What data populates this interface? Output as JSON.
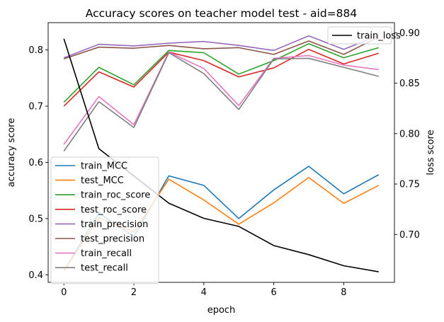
{
  "chart_data": {
    "type": "line",
    "title": "Accuracy scores on teacher model test - aid=884",
    "xlabel": "epoch",
    "ylabel_left": "accuracy score",
    "ylabel_right": "loss score",
    "x": [
      0,
      1,
      2,
      3,
      4,
      5,
      6,
      7,
      8,
      9
    ],
    "xlim": [
      -0.45,
      9.45
    ],
    "ylim_left": [
      0.3865,
      0.8485
    ],
    "ylim_right": [
      0.6525,
      0.91
    ],
    "xticks": [
      0,
      2,
      4,
      6,
      8
    ],
    "yticks_left": [
      0.4,
      0.5,
      0.6,
      0.7,
      0.8
    ],
    "ytick_labels_left": [
      "0.4",
      "0.5",
      "0.6",
      "0.7",
      "0.8"
    ],
    "yticks_right": [
      0.7,
      0.75,
      0.8,
      0.85,
      0.9
    ],
    "ytick_labels_right": [
      "0.70",
      "0.75",
      "0.80",
      "0.85",
      "0.90"
    ],
    "grid": false,
    "series_left": [
      {
        "name": "train_MCC",
        "color": "#1f77b4",
        "values": [
          0.407,
          0.51,
          0.468,
          0.576,
          0.559,
          0.5,
          0.551,
          0.593,
          0.544,
          0.578
        ]
      },
      {
        "name": "test_MCC",
        "color": "#ff7f0e",
        "values": [
          0.407,
          0.502,
          0.476,
          0.57,
          0.533,
          0.49,
          0.528,
          0.573,
          0.527,
          0.559
        ]
      },
      {
        "name": "train_roc_score",
        "color": "#2ca02c",
        "values": [
          0.707,
          0.769,
          0.738,
          0.799,
          0.795,
          0.757,
          0.781,
          0.811,
          0.786,
          0.804
        ]
      },
      {
        "name": "test_roc_score",
        "color": "#d62728",
        "values": [
          0.7,
          0.761,
          0.734,
          0.796,
          0.781,
          0.752,
          0.768,
          0.801,
          0.775,
          0.794
        ]
      },
      {
        "name": "train_precision",
        "color": "#9467bd",
        "values": [
          0.786,
          0.81,
          0.807,
          0.812,
          0.815,
          0.808,
          0.799,
          0.825,
          0.801,
          0.826
        ]
      },
      {
        "name": "test_precision",
        "color": "#8c564b",
        "values": [
          0.784,
          0.805,
          0.803,
          0.808,
          0.802,
          0.804,
          0.792,
          0.816,
          0.792,
          0.823
        ]
      },
      {
        "name": "train_recall",
        "color": "#e377c2",
        "values": [
          0.632,
          0.717,
          0.667,
          0.796,
          0.767,
          0.701,
          0.785,
          0.79,
          0.773,
          0.765
        ]
      },
      {
        "name": "test_recall",
        "color": "#7f7f7f",
        "values": [
          0.62,
          0.708,
          0.662,
          0.795,
          0.758,
          0.694,
          0.784,
          0.785,
          0.769,
          0.753
        ]
      }
    ],
    "series_right": [
      {
        "name": "train_loss",
        "color": "#000000",
        "values": [
          0.894,
          0.785,
          0.758,
          0.731,
          0.716,
          0.708,
          0.689,
          0.68,
          0.669,
          0.663
        ]
      }
    ],
    "legend_left_position": "lower-left",
    "legend_right_position": "upper-right"
  }
}
